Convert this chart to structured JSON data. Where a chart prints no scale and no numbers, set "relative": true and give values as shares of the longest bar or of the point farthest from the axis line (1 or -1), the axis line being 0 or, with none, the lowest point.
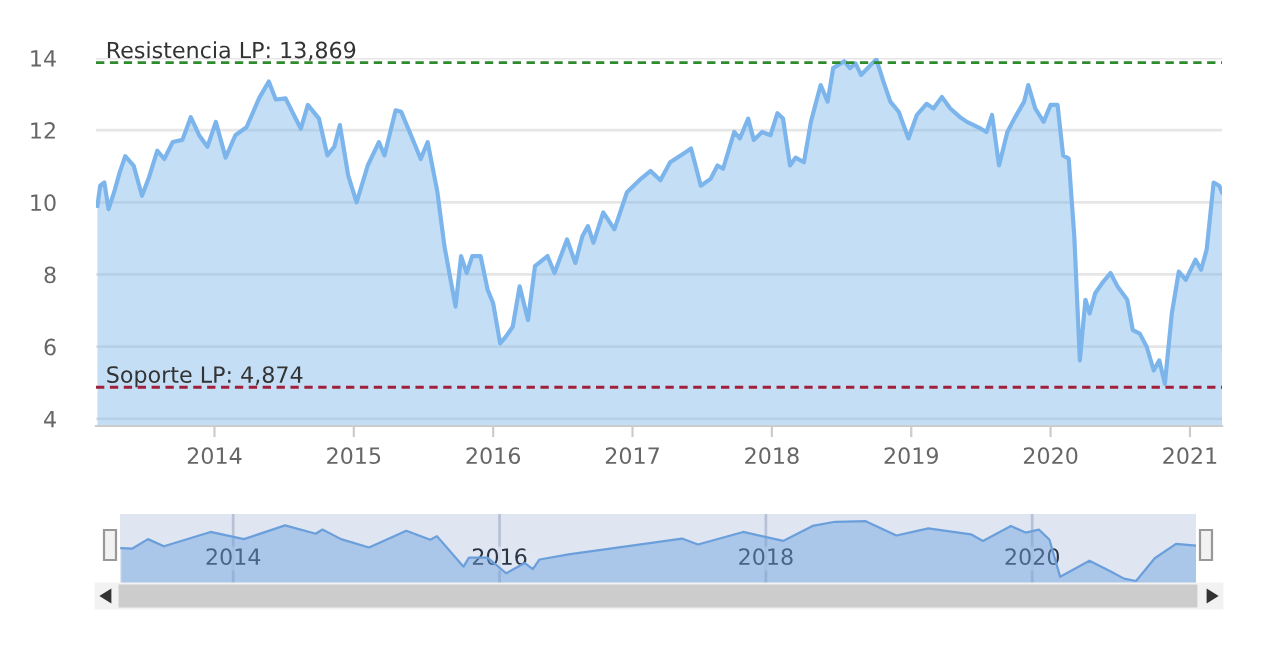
{
  "chart_data": [
    {
      "type": "area",
      "x": [
        2013.16,
        2013.18,
        2013.21,
        2013.24,
        2013.28,
        2013.32,
        2013.36,
        2013.42,
        2013.48,
        2013.53,
        2013.59,
        2013.64,
        2013.7,
        2013.77,
        2013.83,
        2013.89,
        2013.95,
        2014.01,
        2014.08,
        2014.15,
        2014.23,
        2014.32,
        2014.39,
        2014.44,
        2014.51,
        2014.57,
        2014.62,
        2014.67,
        2014.75,
        2014.81,
        2014.86,
        2014.9,
        2014.96,
        2015.02,
        2015.1,
        2015.18,
        2015.22,
        2015.3,
        2015.34,
        2015.42,
        2015.48,
        2015.53,
        2015.6,
        2015.65,
        2015.73,
        2015.77,
        2015.81,
        2015.85,
        2015.91,
        2015.96,
        2016.0,
        2016.05,
        2016.09,
        2016.14,
        2016.19,
        2016.25,
        2016.3,
        2016.39,
        2016.44,
        2016.53,
        2016.59,
        2016.64,
        2016.68,
        2016.72,
        2016.79,
        2016.87,
        2016.96,
        2017.06,
        2017.13,
        2017.2,
        2017.27,
        2017.37,
        2017.42,
        2017.49,
        2017.56,
        2017.61,
        2017.65,
        2017.73,
        2017.77,
        2017.83,
        2017.87,
        2017.93,
        2017.99,
        2018.04,
        2018.08,
        2018.13,
        2018.17,
        2018.23,
        2018.28,
        2018.35,
        2018.4,
        2018.44,
        2018.52,
        2018.56,
        2018.6,
        2018.64,
        2018.71,
        2018.75,
        2018.8,
        2018.85,
        2018.91,
        2018.98,
        2019.04,
        2019.11,
        2019.16,
        2019.22,
        2019.28,
        2019.35,
        2019.4,
        2019.5,
        2019.54,
        2019.58,
        2019.63,
        2019.69,
        2019.74,
        2019.81,
        2019.84,
        2019.89,
        2019.95,
        2020.0,
        2020.05,
        2020.09,
        2020.13,
        2020.17,
        2020.21,
        2020.25,
        2020.28,
        2020.32,
        2020.37,
        2020.43,
        2020.48,
        2020.55,
        2020.59,
        2020.64,
        2020.69,
        2020.74,
        2020.78,
        2020.82,
        2020.87,
        2020.92,
        2020.97,
        2021.04,
        2021.08,
        2021.12,
        2021.17,
        2021.21,
        2021.23
      ],
      "series": [
        {
          "color": "#7cb5ec",
          "values": [
            9.9,
            10.46,
            10.55,
            9.81,
            10.28,
            10.83,
            11.28,
            11.02,
            10.18,
            10.69,
            11.43,
            11.2,
            11.67,
            11.73,
            12.36,
            11.86,
            11.54,
            12.23,
            11.24,
            11.86,
            12.08,
            12.88,
            13.35,
            12.85,
            12.88,
            12.42,
            12.04,
            12.7,
            12.32,
            11.3,
            11.54,
            12.14,
            10.74,
            10.0,
            11.02,
            11.67,
            11.3,
            12.55,
            12.51,
            11.77,
            11.2,
            11.67,
            10.28,
            8.79,
            7.11,
            8.51,
            8.04,
            8.51,
            8.51,
            7.58,
            7.2,
            6.09,
            6.27,
            6.55,
            7.67,
            6.74,
            8.23,
            8.51,
            8.04,
            8.97,
            8.32,
            9.06,
            9.34,
            8.88,
            9.72,
            9.25,
            10.28,
            10.65,
            10.87,
            10.61,
            11.11,
            11.36,
            11.49,
            10.46,
            10.65,
            11.02,
            10.93,
            11.95,
            11.77,
            12.32,
            11.73,
            11.95,
            11.86,
            12.47,
            12.32,
            11.02,
            11.24,
            11.11,
            12.23,
            13.25,
            12.79,
            13.72,
            13.91,
            13.72,
            13.85,
            13.53,
            13.81,
            13.96,
            13.35,
            12.79,
            12.51,
            11.77,
            12.42,
            12.73,
            12.6,
            12.92,
            12.6,
            12.36,
            12.23,
            12.04,
            11.95,
            12.42,
            11.02,
            11.95,
            12.32,
            12.79,
            13.25,
            12.6,
            12.23,
            12.7,
            12.7,
            11.3,
            11.21,
            9.06,
            5.62,
            7.3,
            6.92,
            7.48,
            7.76,
            8.04,
            7.67,
            7.3,
            6.46,
            6.36,
            5.99,
            5.34,
            5.62,
            4.97,
            6.92,
            8.08,
            7.85,
            8.41,
            8.13,
            8.69,
            10.55,
            10.46,
            10.28
          ]
        }
      ],
      "xlim": [
        2013.15,
        2021.23
      ],
      "xticks": [
        2014,
        2015,
        2016,
        2017,
        2018,
        2019,
        2020,
        2021
      ],
      "ylim": [
        3.8,
        14
      ],
      "yticks": [
        4,
        6,
        8,
        10,
        12,
        14
      ],
      "grid": "y",
      "ref_lines": [
        {
          "axis": "y",
          "value": 13.869,
          "label": "Resistencia LP: 13,869",
          "color": "#2e8b2e",
          "line_style": "dashed"
        },
        {
          "axis": "y",
          "value": 4.874,
          "label": "Soporte LP: 4,874",
          "color": "#a0203a",
          "line_style": "dashed"
        }
      ]
    },
    {
      "type": "area",
      "relative": true,
      "x": [
        2013.16,
        2013.24,
        2013.36,
        2013.48,
        2013.83,
        2014.08,
        2014.39,
        2014.62,
        2014.67,
        2014.81,
        2015.02,
        2015.3,
        2015.48,
        2015.53,
        2015.73,
        2015.77,
        2015.91,
        2016.05,
        2016.19,
        2016.25,
        2016.3,
        2016.53,
        2016.79,
        2017.37,
        2017.49,
        2017.83,
        2018.13,
        2018.35,
        2018.52,
        2018.75,
        2018.98,
        2019.22,
        2019.54,
        2019.63,
        2019.84,
        2019.95,
        2020.05,
        2020.13,
        2020.21,
        2020.43,
        2020.59,
        2020.69,
        2020.78,
        2020.92,
        2021.08,
        2021.23
      ],
      "series": [
        {
          "color": "#6a9fdc",
          "values": [
            0.55,
            0.54,
            0.7,
            0.58,
            0.82,
            0.7,
            0.93,
            0.79,
            0.86,
            0.7,
            0.56,
            0.84,
            0.69,
            0.75,
            0.24,
            0.39,
            0.39,
            0.13,
            0.3,
            0.2,
            0.36,
            0.45,
            0.53,
            0.71,
            0.61,
            0.82,
            0.67,
            0.92,
            0.99,
            1.0,
            0.76,
            0.88,
            0.78,
            0.67,
            0.92,
            0.81,
            0.86,
            0.69,
            0.07,
            0.34,
            0.16,
            0.04,
            0,
            0.38,
            0.62,
            0.59
          ]
        }
      ],
      "xlim": [
        2013.15,
        2021.23
      ],
      "xticks": [
        2014,
        2016,
        2018,
        2020
      ],
      "grid": "x",
      "tick_labels": "x"
    }
  ]
}
